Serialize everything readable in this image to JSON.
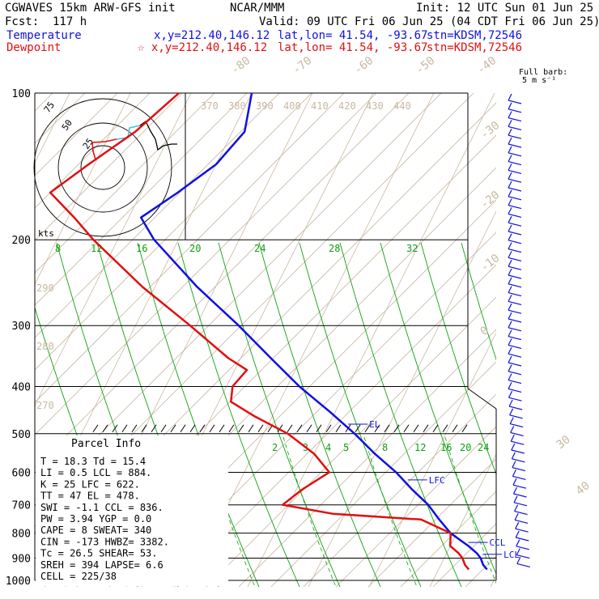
{
  "header": {
    "model": "CGWAVES 15km ARW-GFS init",
    "center": "NCAR/MMM",
    "init": "Init: 12 UTC Sun 01 Jun 25",
    "fcst": "Fcst:  117 h",
    "valid": "Valid: 09 UTC Fri 06 Jun 25 (04 CDT Fri 06 Jun 25)",
    "temp_label": "Temperature",
    "temp_loc": "x,y=212.40,146.12",
    "temp_latlon": "lat,lon= 41.54, -93.67",
    "temp_stn": "stn=KDSM,72546",
    "dew_label": "Dewpoint",
    "dew_loc": "☆ x,y=212.40,146.12",
    "dew_latlon": "lat,lon= 41.54, -93.67",
    "dew_stn": "stn=KDSM,72546",
    "barb_note_1": "Full barb:",
    "barb_note_2": "5 m s⁻¹"
  },
  "colors": {
    "temperature": "#1010e0",
    "dewpoint": "#e01010",
    "isotherm": "#c8b8a0",
    "mixing_ratio": "#10a010",
    "isobar": "#000000",
    "barb": "#1010e0",
    "hodo_cyan": "#40c0e0"
  },
  "parcel_info": {
    "title": "Parcel Info",
    "rows": [
      "T   =   18.3 Td =  15.4",
      "LI  =    0.5 LCL =  884.",
      "K   =     25 LFC =  622.",
      "TT  =     47 EL  =  478.",
      "SWI =   -1.1 CCL =  836.",
      "PW  =   3.94 YGP =   0.0",
      "CAPE =     8 SWEAT=   340",
      "CIN  =  -173 HWBZ= 3382.",
      "Tc  =   26.5 SHEAR=  53.",
      "SREH =   394 LAPSE=   6.6",
      "CELL = 225/38"
    ]
  },
  "hodograph": {
    "unit_label": "kts",
    "ring_labels": [
      "75",
      "50",
      "25"
    ]
  },
  "chart_data": {
    "type": "line",
    "title": "",
    "y_axis": {
      "label": "",
      "scale": "log",
      "ticks": [
        100,
        200,
        300,
        400,
        500,
        600,
        700,
        800,
        900,
        1000
      ]
    },
    "isotherm_labels": [
      "-80",
      "-70",
      "-60",
      "-50",
      "-40",
      "-30",
      "-20",
      "-10",
      "0",
      "30",
      "40"
    ],
    "theta_labels_top": [
      "370",
      "380",
      "390",
      "400",
      "410",
      "420",
      "430",
      "440"
    ],
    "theta_labels_left": [
      "290",
      "280",
      "270"
    ],
    "mixing_ratio_labels_upper": [
      "8",
      "12",
      "16",
      "20",
      "24",
      "28",
      "32"
    ],
    "mixing_ratio_labels_lower": [
      "2",
      "3",
      "4",
      "5",
      "8",
      "12",
      "16",
      "20",
      "24"
    ],
    "levels_marked": [
      {
        "label": "EL",
        "p": 478
      },
      {
        "label": "LFC",
        "p": 622
      },
      {
        "label": "CCL",
        "p": 836
      },
      {
        "label": "LCL",
        "p": 884
      }
    ],
    "series": [
      {
        "name": "Temperature",
        "points": [
          [
            100,
            -60
          ],
          [
            120,
            -58
          ],
          [
            140,
            -60
          ],
          [
            160,
            -64
          ],
          [
            180,
            -68
          ],
          [
            200,
            -64
          ],
          [
            250,
            -53
          ],
          [
            300,
            -43
          ],
          [
            350,
            -35
          ],
          [
            400,
            -28
          ],
          [
            450,
            -21
          ],
          [
            500,
            -15
          ],
          [
            550,
            -10
          ],
          [
            600,
            -5
          ],
          [
            650,
            -1
          ],
          [
            700,
            3
          ],
          [
            750,
            6
          ],
          [
            800,
            9
          ],
          [
            850,
            13
          ],
          [
            880,
            15
          ],
          [
            900,
            16
          ],
          [
            930,
            17
          ],
          [
            950,
            18
          ]
        ]
      },
      {
        "name": "Dewpoint",
        "points": [
          [
            100,
            -72
          ],
          [
            120,
            -76
          ],
          [
            140,
            -81
          ],
          [
            160,
            -85
          ],
          [
            180,
            -79
          ],
          [
            200,
            -74
          ],
          [
            250,
            -62
          ],
          [
            300,
            -51
          ],
          [
            350,
            -42
          ],
          [
            370,
            -38
          ],
          [
            400,
            -39
          ],
          [
            430,
            -38
          ],
          [
            460,
            -33
          ],
          [
            500,
            -26
          ],
          [
            550,
            -20
          ],
          [
            600,
            -16
          ],
          [
            650,
            -19
          ],
          [
            700,
            -21
          ],
          [
            730,
            -12
          ],
          [
            750,
            3
          ],
          [
            800,
            9
          ],
          [
            850,
            10
          ],
          [
            880,
            12
          ],
          [
            900,
            13
          ],
          [
            930,
            14
          ],
          [
            950,
            15
          ]
        ]
      }
    ]
  }
}
